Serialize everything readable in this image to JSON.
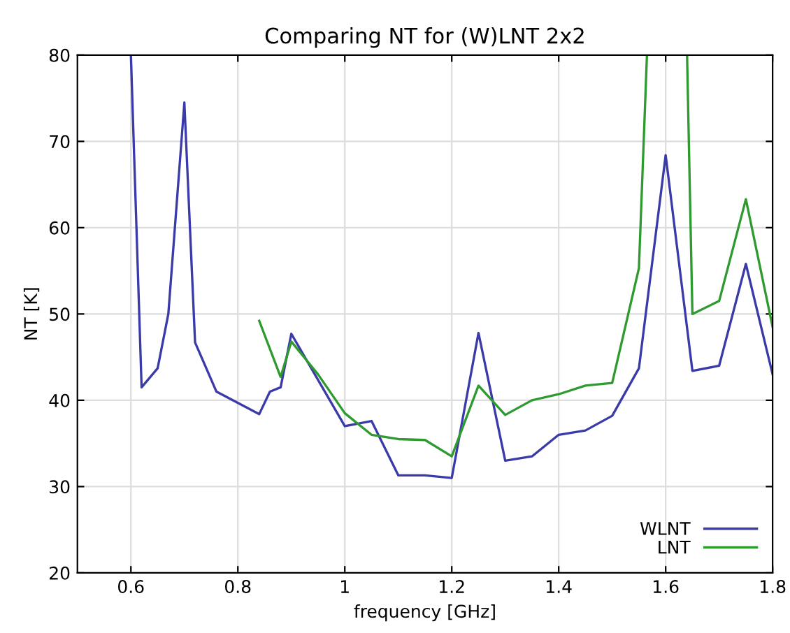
{
  "chart_data": {
    "type": "line",
    "title": "Comparing NT for (W)LNT 2x2",
    "xlabel": "frequency [GHz]",
    "ylabel": "NT [K]",
    "xlim": [
      0.5,
      1.8
    ],
    "ylim": [
      20,
      80
    ],
    "xticks": [
      0.6,
      0.8,
      1,
      1.2,
      1.4,
      1.6,
      1.8
    ],
    "yticks": [
      20,
      30,
      40,
      50,
      60,
      70,
      80
    ],
    "grid": true,
    "legend": "bottom right",
    "marker": "none",
    "line_style": "solid",
    "series": [
      {
        "name": "WLNT",
        "color": "#3a3aa8",
        "x": [
          0.6,
          0.62,
          0.65,
          0.67,
          0.7,
          0.72,
          0.76,
          0.84,
          0.86,
          0.88,
          0.9,
          1.0,
          1.05,
          1.1,
          1.15,
          1.2,
          1.25,
          1.3,
          1.35,
          1.4,
          1.45,
          1.5,
          1.55,
          1.6,
          1.65,
          1.7,
          1.75,
          1.8
        ],
        "values": [
          80,
          41.5,
          43.7,
          50,
          74.5,
          46.7,
          41,
          38.4,
          41,
          41.5,
          47.7,
          37,
          37.6,
          31.3,
          31.3,
          31,
          47.8,
          33,
          33.5,
          36,
          36.5,
          38.2,
          43.7,
          68.4,
          43.4,
          44,
          55.8,
          43
        ]
      },
      {
        "name": "LNT",
        "color": "#2f9a2f",
        "x": [
          0.84,
          0.88,
          0.9,
          0.95,
          1.0,
          1.05,
          1.1,
          1.15,
          1.2,
          1.25,
          1.3,
          1.35,
          1.4,
          1.45,
          1.5,
          1.55,
          1.565,
          1.6,
          1.64,
          1.65,
          1.7,
          1.75,
          1.8
        ],
        "values": [
          49.2,
          42.7,
          46.8,
          43,
          38.5,
          36,
          35.5,
          35.4,
          33.5,
          41.7,
          38.3,
          40,
          40.7,
          41.7,
          42,
          55.3,
          80,
          null,
          80,
          50,
          51.5,
          63.3,
          48.5
        ]
      }
    ]
  }
}
